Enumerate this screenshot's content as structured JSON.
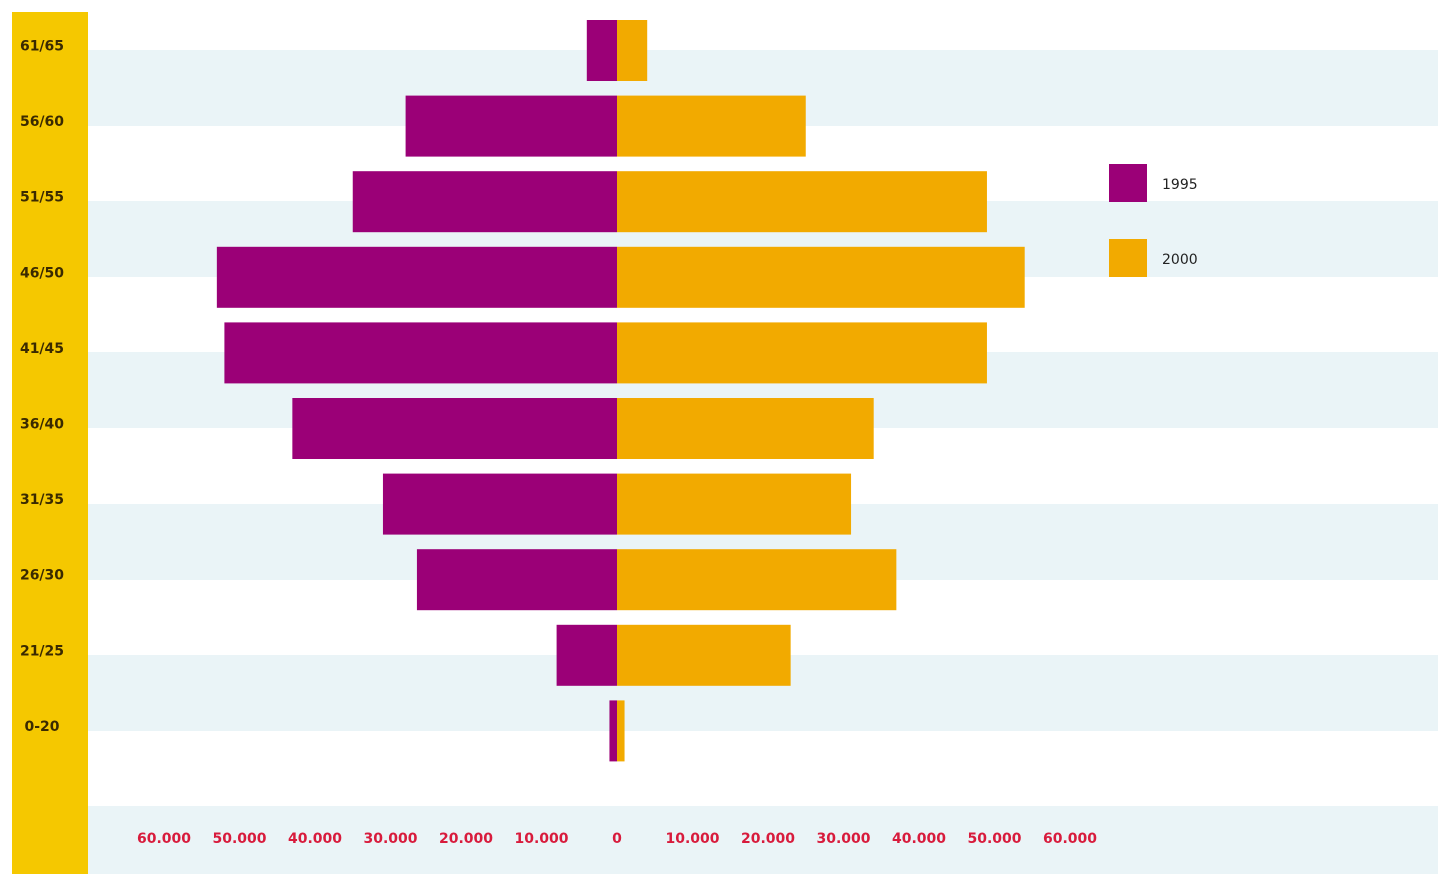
{
  "chart_data": {
    "type": "bar",
    "orientation": "horizontal-diverging",
    "categories": [
      "61/65",
      "56/60",
      "51/55",
      "46/50",
      "41/45",
      "36/40",
      "31/35",
      "26/30",
      "21/25",
      "0-20"
    ],
    "series": [
      {
        "name": "1995",
        "side": "left",
        "color": "#9b0077",
        "values": [
          4000,
          28000,
          35000,
          53000,
          52000,
          43000,
          31000,
          26500,
          8000,
          1000
        ]
      },
      {
        "name": "2000",
        "side": "right",
        "color": "#f2aa00",
        "values": [
          4000,
          25000,
          49000,
          54000,
          49000,
          34000,
          31000,
          37000,
          23000,
          1000
        ]
      }
    ],
    "x_ticks": [
      {
        "label": "60.000",
        "value": -60000
      },
      {
        "label": "50.000",
        "value": -50000
      },
      {
        "label": "40.000",
        "value": -40000
      },
      {
        "label": "30.000",
        "value": -30000
      },
      {
        "label": "20.000",
        "value": -20000
      },
      {
        "label": "10.000",
        "value": -10000
      },
      {
        "label": "0",
        "value": 0
      },
      {
        "label": "10.000",
        "value": 10000
      },
      {
        "label": "20.000",
        "value": 20000
      },
      {
        "label": "30.000",
        "value": 30000
      },
      {
        "label": "40.000",
        "value": 40000
      },
      {
        "label": "50.000",
        "value": 50000
      },
      {
        "label": "60.000",
        "value": 60000
      }
    ],
    "xlim": [
      -60000,
      60000
    ],
    "legend": {
      "position": "right",
      "entries": [
        "1995",
        "2000"
      ]
    },
    "colors": {
      "category_band": "#f5c800",
      "stripe": "#eaf4f7",
      "tick_text": "#d81b3c",
      "category_text": "#3a2a00"
    }
  }
}
